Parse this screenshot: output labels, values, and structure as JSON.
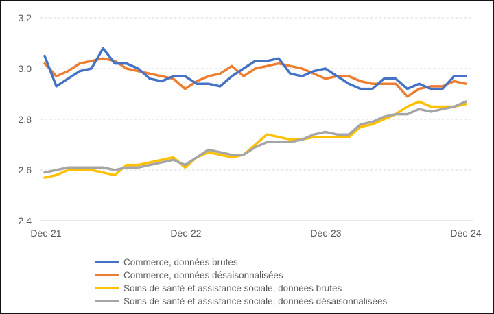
{
  "chart_data": {
    "type": "line",
    "title": "",
    "ylim": [
      2.4,
      3.2
    ],
    "yticks": [
      "3.2",
      "3.0",
      "2.8",
      "2.6",
      "2.4"
    ],
    "xticks": [
      "Déc-21",
      "Déc-22",
      "Déc-23",
      "Déc-24"
    ],
    "x_frequency": "monthly",
    "grid": "horizontal-dashed",
    "legend_position": "bottom-left",
    "series": [
      {
        "name": "Commerce, données brutes",
        "color": "#4472C4",
        "values": [
          3.05,
          2.93,
          2.96,
          2.99,
          3.0,
          3.08,
          3.02,
          3.02,
          3.0,
          2.96,
          2.95,
          2.97,
          2.97,
          2.94,
          2.94,
          2.93,
          2.97,
          3.0,
          3.03,
          3.03,
          3.04,
          2.98,
          2.97,
          2.99,
          3.0,
          2.97,
          2.94,
          2.92,
          2.92,
          2.96,
          2.96,
          2.92,
          2.94,
          2.92,
          2.92,
          2.97,
          2.97
        ]
      },
      {
        "name": "Commerce, données désaisonnalisées",
        "color": "#ED7D31",
        "values": [
          3.02,
          2.97,
          2.99,
          3.02,
          3.03,
          3.04,
          3.03,
          3.0,
          2.99,
          2.98,
          2.97,
          2.96,
          2.92,
          2.95,
          2.97,
          2.98,
          3.01,
          2.97,
          3.0,
          3.01,
          3.02,
          3.01,
          3.0,
          2.98,
          2.96,
          2.97,
          2.97,
          2.95,
          2.94,
          2.94,
          2.94,
          2.89,
          2.92,
          2.93,
          2.93,
          2.95,
          2.94
        ]
      },
      {
        "name": "Soins de santé et assistance sociale, données brutes",
        "color": "#FFC000",
        "values": [
          2.57,
          2.58,
          2.6,
          2.6,
          2.6,
          2.59,
          2.58,
          2.62,
          2.62,
          2.63,
          2.64,
          2.65,
          2.61,
          2.65,
          2.67,
          2.66,
          2.65,
          2.66,
          2.7,
          2.74,
          2.73,
          2.72,
          2.72,
          2.73,
          2.73,
          2.73,
          2.73,
          2.77,
          2.78,
          2.8,
          2.82,
          2.85,
          2.87,
          2.85,
          2.85,
          2.85,
          2.86
        ]
      },
      {
        "name": "Soins de santé et assistance sociale, données désaisonnalisées",
        "color": "#A5A5A5",
        "values": [
          2.59,
          2.6,
          2.61,
          2.61,
          2.61,
          2.61,
          2.6,
          2.61,
          2.61,
          2.62,
          2.63,
          2.64,
          2.62,
          2.65,
          2.68,
          2.67,
          2.66,
          2.66,
          2.69,
          2.71,
          2.71,
          2.71,
          2.72,
          2.74,
          2.75,
          2.74,
          2.74,
          2.78,
          2.79,
          2.81,
          2.82,
          2.82,
          2.84,
          2.83,
          2.84,
          2.85,
          2.87
        ]
      }
    ]
  }
}
